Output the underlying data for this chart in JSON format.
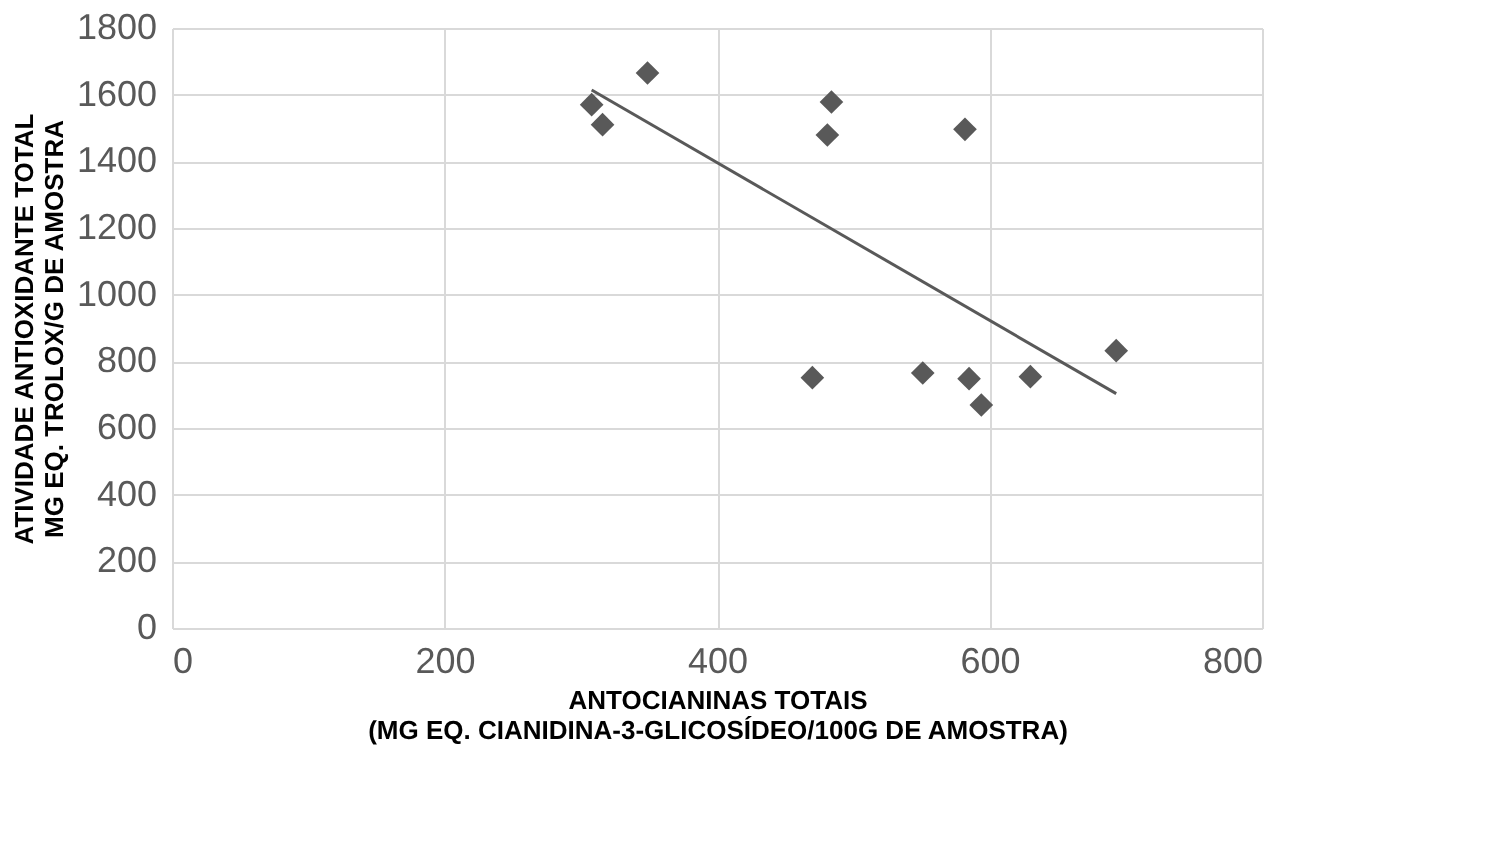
{
  "chart_data": {
    "type": "scatter",
    "xlabel": "ANTOCIANINAS TOTAIS\n(MG EQ. CIANIDINA-3-GLICOSÍDEO/100G DE AMOSTRA)",
    "ylabel": "ATIVIDADE ANTIOXIDANTE TOTAL\nMG EQ. TROLOX/G DE AMOSTRA",
    "xlim": [
      0,
      800
    ],
    "xticks": [
      0,
      200,
      400,
      600,
      800
    ],
    "ylim": [
      0,
      1800
    ],
    "yticks": [
      0,
      200,
      400,
      600,
      800,
      1000,
      1200,
      1400,
      1600,
      1800
    ],
    "grid": true,
    "marker": "diamond",
    "series": [
      {
        "color": "#595959",
        "x": [
          308,
          316,
          349,
          484,
          481,
          582,
          470,
          551,
          585,
          594,
          630,
          693
        ],
        "values": [
          1570,
          1510,
          1665,
          1578,
          1479,
          1496,
          751,
          765,
          748,
          669,
          754,
          832
        ]
      },
      {
        "type": "line",
        "color": "#595959",
        "line_style": "solid",
        "marker": "none",
        "x": [
          308,
          693
        ],
        "values": [
          1614,
          703
        ]
      }
    ]
  }
}
